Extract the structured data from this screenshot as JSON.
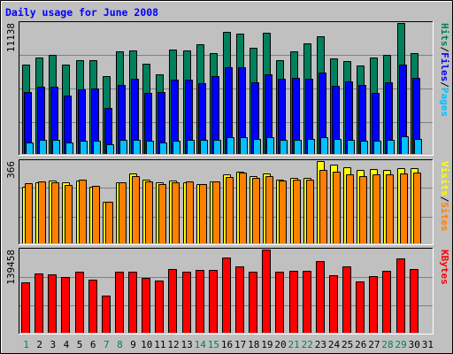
{
  "title": "Daily usage for June 2008",
  "colors": {
    "background": "#C0C0C0",
    "plot_background": "#C0C0C0",
    "grid": "#808080",
    "border_dark": "#000000",
    "border_light": "#FFFFFF",
    "title": "#0000FF",
    "day_default": "#000000",
    "day_weekend": "#00805C",
    "hits": "#00805C",
    "files": "#0000FF",
    "pages": "#00C0FF",
    "visits": "#FFFF00",
    "sites": "#FF8000",
    "kbytes": "#FF0000"
  },
  "chart_data": [
    {
      "type": "bar",
      "name": "requests-panel",
      "ymax_label": "11138",
      "ylim": [
        0,
        11138
      ],
      "categories": [
        "1",
        "2",
        "3",
        "4",
        "5",
        "6",
        "7",
        "8",
        "9",
        "10",
        "11",
        "12",
        "13",
        "14",
        "15",
        "16",
        "17",
        "18",
        "19",
        "20",
        "21",
        "22",
        "23",
        "24",
        "25",
        "26",
        "27",
        "28",
        "29",
        "30",
        "31"
      ],
      "weekend_days": [
        "1",
        "7",
        "8",
        "14",
        "15",
        "21",
        "22",
        "28",
        "29"
      ],
      "right_labels": [
        {
          "text": "Hits",
          "color": "#00805C"
        },
        {
          "text": "/",
          "color": "#000000"
        },
        {
          "text": "Files",
          "color": "#0000FF"
        },
        {
          "text": "/",
          "color": "#000000"
        },
        {
          "text": "Pages",
          "color": "#00C0FF"
        }
      ],
      "series": [
        {
          "name": "Hits",
          "values": [
            7600,
            8200,
            8400,
            7600,
            8000,
            8000,
            6600,
            8700,
            8800,
            7700,
            6800,
            8900,
            8800,
            9300,
            8600,
            10400,
            10200,
            9000,
            10300,
            8000,
            8700,
            9400,
            10000,
            8100,
            7900,
            7500,
            8200,
            8400,
            11138,
            8600,
            0
          ]
        },
        {
          "name": "Files",
          "values": [
            5300,
            5700,
            5700,
            5000,
            5500,
            5600,
            3900,
            5900,
            6400,
            5200,
            5300,
            6300,
            6300,
            6000,
            6600,
            7400,
            7400,
            6100,
            6800,
            6400,
            6500,
            6400,
            6900,
            5800,
            6200,
            5900,
            5200,
            6100,
            7600,
            6500,
            0
          ]
        },
        {
          "name": "Pages",
          "values": [
            1000,
            1200,
            1200,
            1000,
            1100,
            1100,
            800,
            1200,
            1200,
            1100,
            1000,
            1100,
            1200,
            1200,
            1200,
            1400,
            1400,
            1300,
            1400,
            1200,
            1200,
            1300,
            1400,
            1300,
            1200,
            1100,
            1100,
            1200,
            1500,
            1300,
            0
          ]
        }
      ]
    },
    {
      "type": "bar",
      "name": "visits-panel",
      "ymax_label": "366",
      "ylim": [
        0,
        366
      ],
      "categories": [
        "1",
        "2",
        "3",
        "4",
        "5",
        "6",
        "7",
        "8",
        "9",
        "10",
        "11",
        "12",
        "13",
        "14",
        "15",
        "16",
        "17",
        "18",
        "19",
        "20",
        "21",
        "22",
        "23",
        "24",
        "25",
        "26",
        "27",
        "28",
        "29",
        "30",
        "31"
      ],
      "right_labels": [
        {
          "text": "Visits",
          "color": "#FFFF00"
        },
        {
          "text": "/",
          "color": "#000000"
        },
        {
          "text": "Sites",
          "color": "#FF8000"
        }
      ],
      "series": [
        {
          "name": "Visits",
          "values": [
            250,
            270,
            280,
            270,
            280,
            250,
            185,
            270,
            310,
            285,
            270,
            280,
            270,
            265,
            275,
            305,
            320,
            300,
            310,
            285,
            290,
            290,
            366,
            350,
            340,
            325,
            330,
            325,
            335,
            335,
            0
          ]
        },
        {
          "name": "Sites",
          "values": [
            268,
            275,
            270,
            260,
            285,
            255,
            185,
            270,
            300,
            275,
            265,
            270,
            275,
            265,
            275,
            295,
            315,
            290,
            300,
            280,
            285,
            285,
            325,
            320,
            305,
            300,
            305,
            305,
            310,
            315,
            0
          ]
        }
      ]
    },
    {
      "type": "bar",
      "name": "kbytes-panel",
      "ymax_label": "139458",
      "ylim": [
        0,
        139458
      ],
      "categories": [
        "1",
        "2",
        "3",
        "4",
        "5",
        "6",
        "7",
        "8",
        "9",
        "10",
        "11",
        "12",
        "13",
        "14",
        "15",
        "16",
        "17",
        "18",
        "19",
        "20",
        "21",
        "22",
        "23",
        "24",
        "25",
        "26",
        "27",
        "28",
        "29",
        "30",
        "31"
      ],
      "right_labels": [
        {
          "text": "KBytes",
          "color": "#FF0000"
        }
      ],
      "series": [
        {
          "name": "KBytes",
          "values": [
            85000,
            100000,
            98000,
            93000,
            103000,
            89000,
            62000,
            103000,
            103000,
            92000,
            87000,
            107000,
            102000,
            105000,
            106000,
            126000,
            112000,
            102000,
            139458,
            102000,
            104000,
            104000,
            120000,
            97000,
            111000,
            86000,
            95000,
            104000,
            124000,
            107000,
            0
          ]
        }
      ]
    }
  ]
}
